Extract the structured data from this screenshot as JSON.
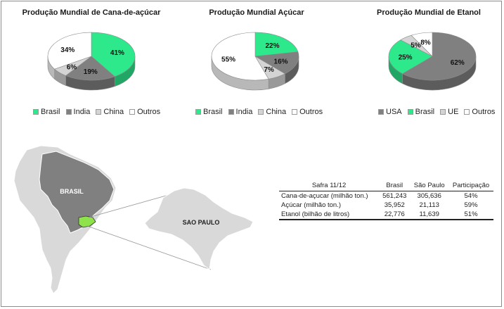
{
  "colors": {
    "brasil": "#2ee88c",
    "india": "#808080",
    "china": "#d4d4d4",
    "outros": "#ffffff",
    "usa": "#808080",
    "ue": "#d4d4d4",
    "sao_paulo": "#8ee34a"
  },
  "chart_data": [
    {
      "type": "pie",
      "title": "Produção Mundial de Cana-de-açúcar",
      "categories": [
        "Brasil",
        "India",
        "China",
        "Outros"
      ],
      "values": [
        41,
        19,
        6,
        34
      ],
      "value_labels": [
        "41%",
        "19%",
        "6%",
        "34%"
      ],
      "legend_position": "bottom"
    },
    {
      "type": "pie",
      "title": "Produção Mundial Açúcar",
      "categories": [
        "Brasil",
        "India",
        "China",
        "Outros"
      ],
      "values": [
        22,
        16,
        7,
        55
      ],
      "value_labels": [
        "22%",
        "16%",
        "7%",
        "55%"
      ],
      "legend_position": "bottom"
    },
    {
      "type": "pie",
      "title": "Produção Mundial de Etanol",
      "categories": [
        "USA",
        "Brasil",
        "UE",
        "Outros"
      ],
      "values": [
        62,
        25,
        5,
        8
      ],
      "value_labels": [
        "62%",
        "25%",
        "5%",
        "8%"
      ],
      "legend_position": "bottom"
    },
    {
      "type": "table",
      "columns": [
        "Safra 11/12",
        "Brasil",
        "São Paulo",
        "Participação"
      ],
      "rows": [
        [
          "Cana-de-açucar (milhão ton.)",
          "561,243",
          "305,636",
          "54%"
        ],
        [
          "Açúcar (milhão ton.)",
          "35,952",
          "21,113",
          "59%"
        ],
        [
          "Etanol (bilhão de litros)",
          "22,776",
          "11,639",
          "51%"
        ]
      ]
    }
  ],
  "map": {
    "country_label": "BRASIL",
    "state_label": "SAO PAULO"
  }
}
